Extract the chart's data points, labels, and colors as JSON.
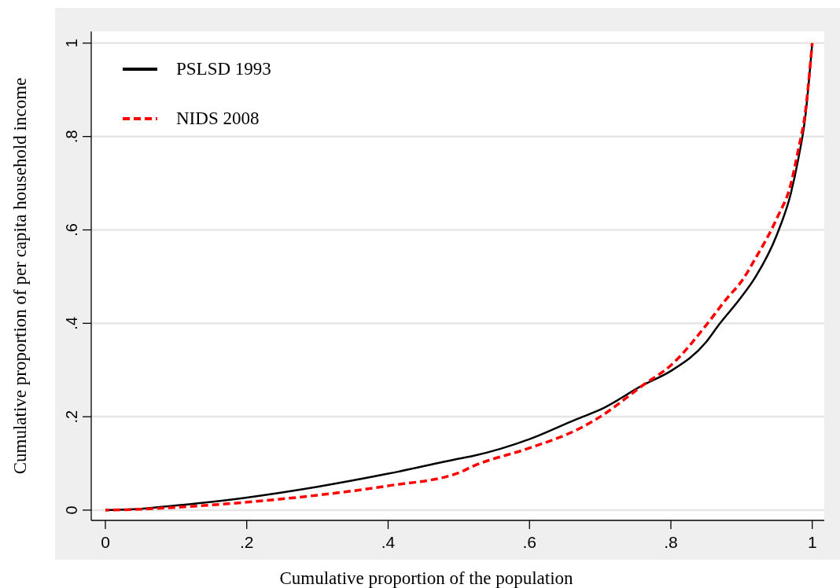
{
  "chart_data": {
    "type": "line",
    "xlabel": "Cumulative proportion of the population",
    "ylabel": "Cumulative proportion of per capita household income",
    "xlim": [
      -0.02,
      1.017
    ],
    "ylim": [
      -0.022,
      1.025
    ],
    "xticks": [
      {
        "value": 0,
        "label": "0"
      },
      {
        "value": 0.2,
        "label": ".2"
      },
      {
        "value": 0.4,
        "label": ".4"
      },
      {
        "value": 0.6,
        "label": ".6"
      },
      {
        "value": 0.8,
        "label": ".8"
      },
      {
        "value": 1,
        "label": "1"
      }
    ],
    "yticks": [
      {
        "value": 0,
        "label": "0"
      },
      {
        "value": 0.2,
        "label": ".2"
      },
      {
        "value": 0.4,
        "label": ".4"
      },
      {
        "value": 0.6,
        "label": ".6"
      },
      {
        "value": 0.8,
        "label": ".8"
      },
      {
        "value": 1,
        "label": "1"
      }
    ],
    "grid": "y",
    "legend": "top left",
    "series": [
      {
        "name": "PSLSD 1993",
        "color": "#000000",
        "line_style": "solid",
        "x": [
          0,
          0.05,
          0.1,
          0.2,
          0.3,
          0.4,
          0.5,
          0.52,
          0.6,
          0.667,
          0.7,
          0.761,
          0.8,
          0.85,
          0.868,
          0.898,
          0.92,
          0.95,
          0.97,
          0.98,
          0.99,
          1
        ],
        "values": [
          0,
          0.003,
          0.01,
          0.027,
          0.05,
          0.078,
          0.11,
          0.116,
          0.152,
          0.195,
          0.215,
          0.268,
          0.298,
          0.36,
          0.397,
          0.453,
          0.5,
          0.59,
          0.68,
          0.75,
          0.84,
          1
        ]
      },
      {
        "name": "NIDS 2008",
        "color": "#ff0000",
        "line_style": "dashed",
        "x": [
          0,
          0.05,
          0.1,
          0.2,
          0.3,
          0.4,
          0.5,
          0.52,
          0.6,
          0.667,
          0.7,
          0.761,
          0.8,
          0.853,
          0.879,
          0.9,
          0.92,
          0.95,
          0.97,
          0.98,
          0.99,
          1
        ],
        "values": [
          0,
          0.002,
          0.006,
          0.017,
          0.032,
          0.052,
          0.08,
          0.094,
          0.133,
          0.172,
          0.2,
          0.268,
          0.31,
          0.402,
          0.453,
          0.49,
          0.54,
          0.625,
          0.7,
          0.77,
          0.85,
          1
        ]
      }
    ]
  }
}
